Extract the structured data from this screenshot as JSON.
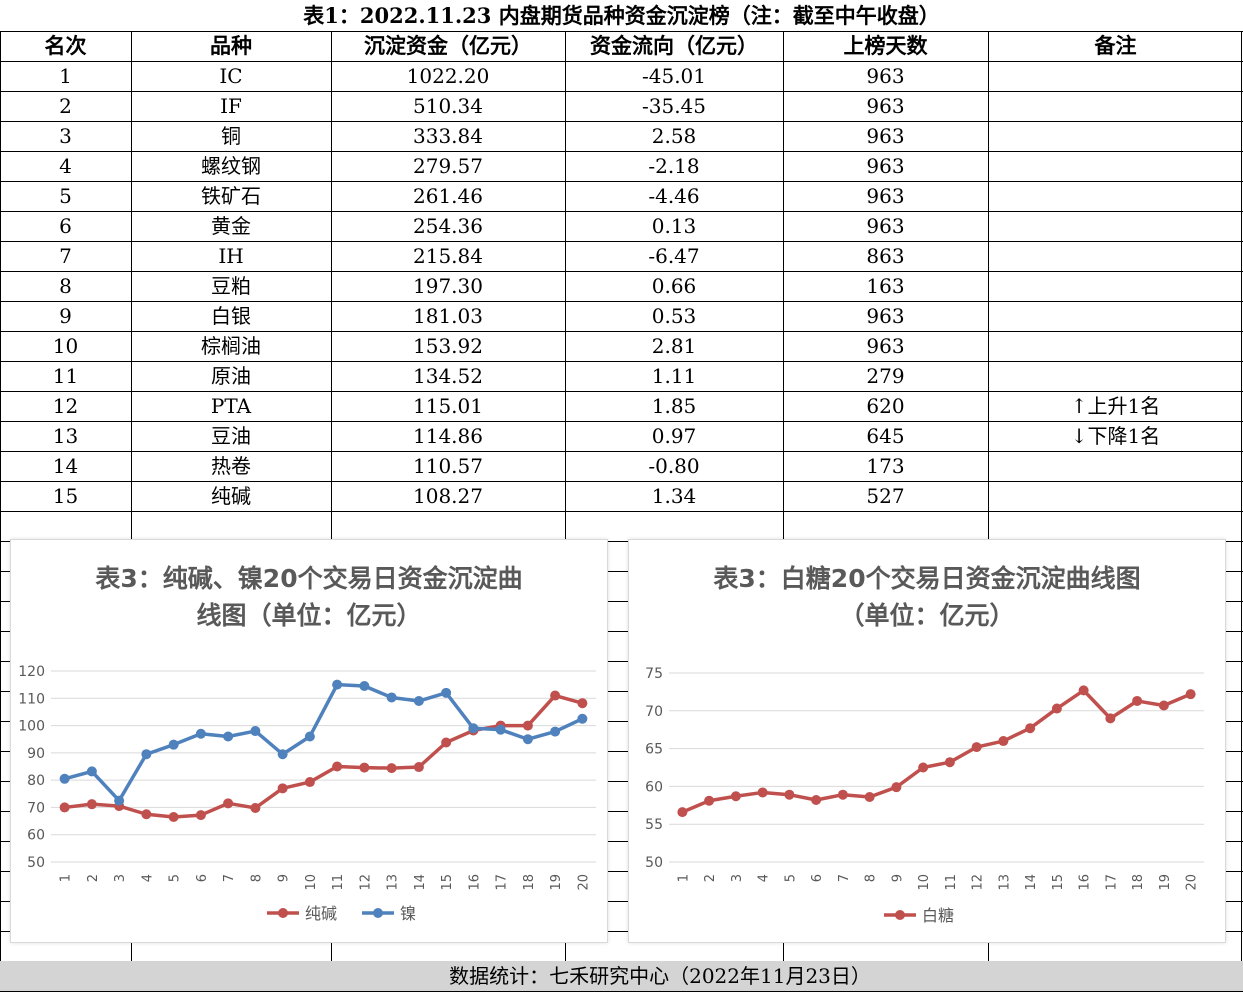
{
  "title": "表1：2022.11.23 内盘期货品种资金沉淀榜（注：截至中午收盘）",
  "headers": [
    "名次",
    "品种",
    "沉淀资金（亿元）",
    "资金流向（亿元）",
    "上榜天数",
    "备注"
  ],
  "rows": [
    [
      "1",
      "IC",
      "1022.20",
      "-45.01",
      "963",
      ""
    ],
    [
      "2",
      "IF",
      "510.34",
      "-35.45",
      "963",
      ""
    ],
    [
      "3",
      "铜",
      "333.84",
      "2.58",
      "963",
      ""
    ],
    [
      "4",
      "螺纹钢",
      "279.57",
      "-2.18",
      "963",
      ""
    ],
    [
      "5",
      "铁矿石",
      "261.46",
      "-4.46",
      "963",
      ""
    ],
    [
      "6",
      "黄金",
      "254.36",
      "0.13",
      "963",
      ""
    ],
    [
      "7",
      "IH",
      "215.84",
      "-6.47",
      "863",
      ""
    ],
    [
      "8",
      "豆粕",
      "197.30",
      "0.66",
      "163",
      ""
    ],
    [
      "9",
      "白银",
      "181.03",
      "0.53",
      "963",
      ""
    ],
    [
      "10",
      "棕榈油",
      "153.92",
      "2.81",
      "963",
      ""
    ],
    [
      "11",
      "原油",
      "134.52",
      "1.11",
      "279",
      ""
    ],
    [
      "12",
      "PTA",
      "115.01",
      "1.85",
      "620",
      "↑上升1名"
    ],
    [
      "13",
      "豆油",
      "114.86",
      "0.97",
      "645",
      "↓下降1名"
    ],
    [
      "14",
      "热卷",
      "110.57",
      "-0.80",
      "173",
      ""
    ],
    [
      "15",
      "纯碱",
      "108.27",
      "1.34",
      "527",
      ""
    ]
  ],
  "footer": "数据统计：七禾研究中心（2022年11月23日）",
  "chart_data": [
    {
      "type": "line",
      "title_lines": [
        "表3：纯碱、镍20个交易日资金沉淀曲",
        "线图（单位：亿元）"
      ],
      "categories": [
        "1",
        "2",
        "3",
        "4",
        "5",
        "6",
        "7",
        "8",
        "9",
        "10",
        "11",
        "12",
        "13",
        "14",
        "15",
        "16",
        "17",
        "18",
        "19",
        "20"
      ],
      "y_ticks": [
        "50",
        "60",
        "70",
        "80",
        "90",
        "100",
        "110",
        "120"
      ],
      "ylim": [
        50,
        120
      ],
      "grid": true,
      "legend": "bottom",
      "series": [
        {
          "name": "纯碱",
          "color": "#c0504d",
          "values": [
            70.0,
            71.2,
            70.5,
            67.5,
            66.5,
            67.2,
            71.5,
            69.8,
            77.0,
            79.3,
            85.0,
            84.6,
            84.4,
            84.8,
            93.8,
            98.2,
            100.0,
            100.0,
            111.0,
            108.2
          ]
        },
        {
          "name": "镍",
          "color": "#4f81bd",
          "values": [
            80.5,
            83.2,
            72.5,
            89.5,
            93.0,
            97.0,
            96.0,
            98.0,
            89.5,
            96.0,
            115.0,
            114.5,
            110.3,
            109.0,
            112.0,
            99.0,
            98.5,
            95.0,
            97.8,
            102.5
          ]
        }
      ]
    },
    {
      "type": "line",
      "title_lines": [
        "表3：白糖20个交易日资金沉淀曲线图",
        "（单位：亿元）"
      ],
      "categories": [
        "1",
        "2",
        "3",
        "4",
        "5",
        "6",
        "7",
        "8",
        "9",
        "10",
        "11",
        "12",
        "13",
        "14",
        "15",
        "16",
        "17",
        "18",
        "19",
        "20"
      ],
      "y_ticks": [
        "50",
        "55",
        "60",
        "65",
        "70",
        "75"
      ],
      "ylim": [
        50,
        75
      ],
      "grid": true,
      "legend": "bottom",
      "series": [
        {
          "name": "白糖",
          "color": "#c0504d",
          "values": [
            56.6,
            58.1,
            58.7,
            59.2,
            58.9,
            58.2,
            58.9,
            58.6,
            59.9,
            62.5,
            63.2,
            65.2,
            66.0,
            67.7,
            70.3,
            72.7,
            69.0,
            71.3,
            70.7,
            72.2
          ]
        }
      ]
    }
  ]
}
